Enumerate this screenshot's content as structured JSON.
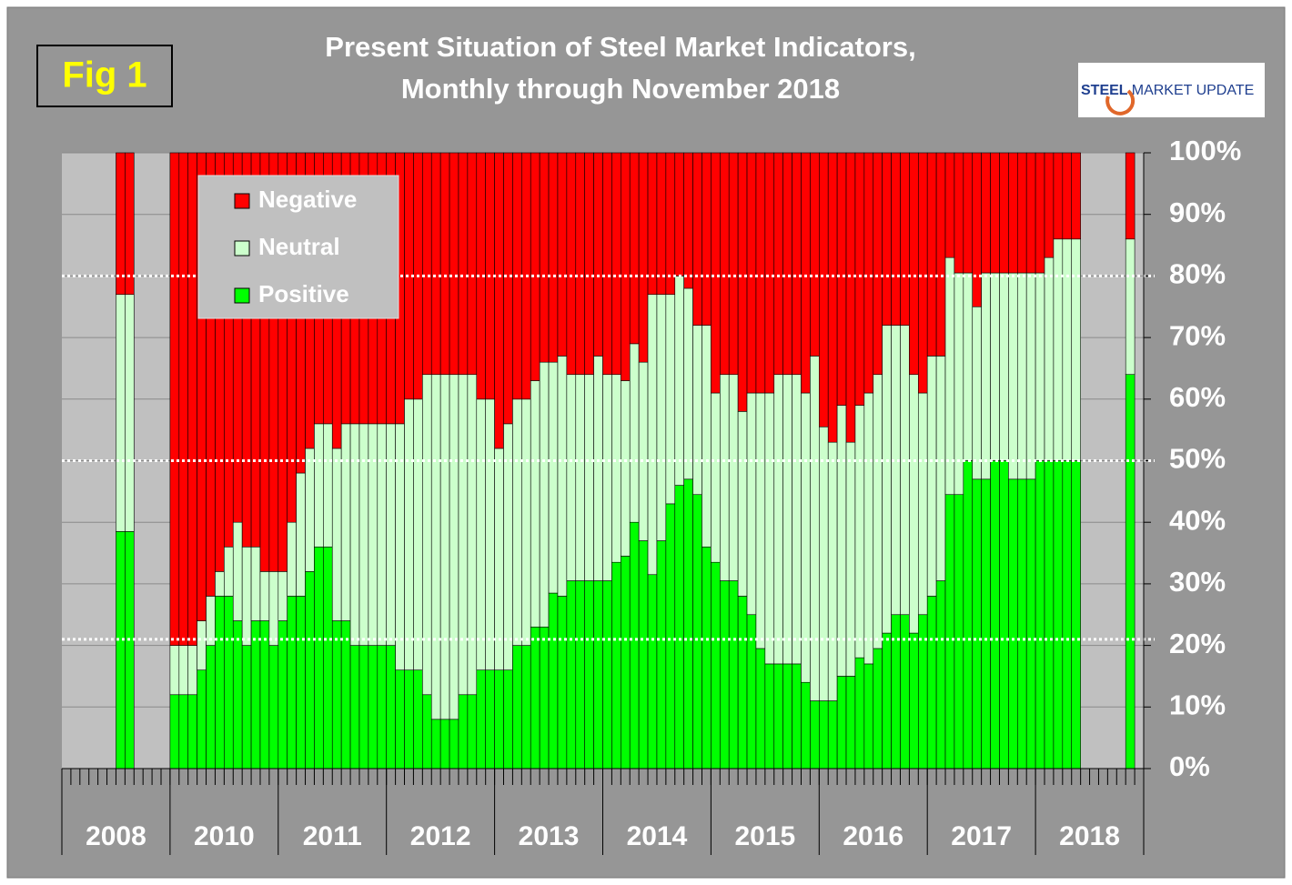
{
  "chart_data": {
    "type": "stacked_bar",
    "title": [
      "Present Situation of Steel Market Indicators,",
      "Monthly through November 2018"
    ],
    "fig_label": "Fig 1",
    "logo": [
      "STEEL",
      "MARKET UPDATE"
    ],
    "groups": [
      "2008",
      "2010",
      "2011",
      "2012",
      "2013",
      "2014",
      "2015",
      "2016",
      "2017",
      "2018"
    ],
    "categories": [
      null,
      null,
      null,
      null,
      null,
      null,
      null,
      null,
      null,
      null,
      null,
      null,
      null,
      null,
      null,
      null,
      null,
      null,
      null,
      null,
      null,
      null,
      null,
      null,
      null,
      null,
      null,
      null,
      null,
      null,
      null,
      null,
      null,
      null,
      null,
      null,
      null,
      null,
      null,
      null,
      null,
      null,
      null,
      null,
      null,
      null,
      null,
      null,
      null,
      null,
      null,
      null,
      null,
      null,
      null,
      null,
      null,
      null,
      null,
      null,
      null,
      null,
      null,
      null,
      null,
      null,
      null,
      null,
      null,
      null,
      null,
      null,
      null,
      null,
      null,
      null,
      null,
      null,
      null,
      null,
      null,
      null,
      null,
      null,
      null,
      null,
      null,
      null,
      null,
      null,
      null,
      null,
      null,
      null,
      null,
      null,
      null,
      null,
      null,
      null,
      null,
      null,
      null,
      null,
      null,
      null,
      null,
      null,
      null,
      null,
      null,
      null,
      null,
      null,
      null,
      null,
      null,
      null,
      null,
      null
    ],
    "series": [
      {
        "name": "Positive",
        "color": "#00ff00",
        "values": [
          null,
          null,
          null,
          null,
          null,
          null,
          38.5,
          38.5,
          null,
          null,
          null,
          null,
          12,
          12,
          12,
          16,
          20,
          28,
          28,
          24,
          20,
          24,
          24,
          20,
          24,
          28,
          28,
          32,
          36,
          36,
          24,
          24,
          20,
          20,
          20,
          20,
          20,
          16,
          16,
          16,
          12,
          8,
          8,
          8,
          12,
          12,
          16,
          16,
          16,
          16,
          20,
          20,
          23,
          23,
          28.5,
          28,
          30.5,
          30.5,
          30.5,
          30.5,
          30.5,
          33.5,
          34.5,
          40,
          37,
          31.5,
          37,
          43,
          46,
          47,
          44.5,
          36,
          33.5,
          30.5,
          30.5,
          28,
          25,
          19.5,
          17,
          17,
          17,
          17,
          14,
          11,
          11,
          11,
          15,
          15,
          18,
          17,
          19.5,
          22,
          25,
          25,
          22,
          25,
          28,
          30.5,
          44.5,
          44.5,
          50,
          47,
          47,
          50,
          50,
          47,
          47,
          47,
          50,
          50,
          50,
          50,
          50,
          null,
          null,
          null,
          null,
          null,
          64,
          null
        ]
      },
      {
        "name": "Neutral",
        "color": "#ccffcc",
        "values": [
          null,
          null,
          null,
          null,
          null,
          null,
          38.5,
          38.5,
          null,
          null,
          null,
          null,
          8,
          8,
          8,
          8,
          8,
          4,
          8,
          16,
          16,
          12,
          8,
          12,
          8,
          12,
          20,
          20,
          20,
          20,
          28,
          32,
          36,
          36,
          36,
          36,
          36,
          40,
          44,
          44,
          52,
          56,
          56,
          56,
          52,
          52,
          44,
          44,
          36,
          40,
          40,
          40,
          40,
          43,
          37.5,
          39,
          33.5,
          33.5,
          33.5,
          36.5,
          33.5,
          30.5,
          28.5,
          29,
          29,
          45.5,
          40,
          34,
          34,
          31,
          27.5,
          36,
          27.5,
          33.5,
          33.5,
          30,
          36,
          41.5,
          44,
          47,
          47,
          47,
          47,
          56,
          44.5,
          42,
          44,
          38,
          41,
          44,
          44.5,
          50,
          47,
          47,
          42,
          36,
          39,
          36.5,
          38.5,
          36,
          30.5,
          28,
          33.5,
          30.5,
          30.5,
          33.5,
          33.5,
          33.5,
          30.5,
          33,
          36,
          36,
          36,
          null,
          null,
          null,
          null,
          null,
          22,
          null
        ]
      },
      {
        "name": "Negative",
        "color": "#ff0000",
        "values": [
          null,
          null,
          null,
          null,
          null,
          null,
          23,
          23,
          null,
          null,
          null,
          null,
          80,
          80,
          80,
          76,
          72,
          68,
          64,
          60,
          64,
          64,
          68,
          68,
          68,
          60,
          52,
          48,
          44,
          44,
          48,
          44,
          44,
          44,
          44,
          44,
          44,
          44,
          40,
          40,
          36,
          36,
          36,
          36,
          36,
          36,
          40,
          40,
          48,
          44,
          40,
          40,
          37,
          34,
          34,
          33,
          36,
          36,
          36,
          33,
          36,
          36,
          37,
          31,
          34,
          23,
          23,
          23,
          20,
          22,
          28,
          28,
          39,
          36,
          36,
          42,
          39,
          39,
          39,
          36,
          36,
          36,
          39,
          33,
          44.5,
          47,
          41,
          47,
          41,
          39,
          36,
          28,
          28,
          28,
          36,
          39,
          33,
          33,
          17,
          19.5,
          19.5,
          25,
          19.5,
          19.5,
          19.5,
          19.5,
          19.5,
          19.5,
          19.5,
          17,
          14,
          14,
          14,
          null,
          null,
          null,
          null,
          null,
          14,
          null
        ]
      }
    ],
    "ylim": [
      0,
      100
    ],
    "yticks": [
      {
        "value": 0,
        "label": "0%"
      },
      {
        "value": 10,
        "label": "10%"
      },
      {
        "value": 20,
        "label": "20%"
      },
      {
        "value": 30,
        "label": "30%"
      },
      {
        "value": 40,
        "label": "40%"
      },
      {
        "value": 50,
        "label": "50%"
      },
      {
        "value": 60,
        "label": "60%"
      },
      {
        "value": 70,
        "label": "70%"
      },
      {
        "value": 80,
        "label": "80%"
      },
      {
        "value": 90,
        "label": "90%"
      },
      {
        "value": 100,
        "label": "100%"
      }
    ],
    "grid": true,
    "reference_lines": [
      80,
      50,
      21
    ],
    "legend": "upper left"
  }
}
